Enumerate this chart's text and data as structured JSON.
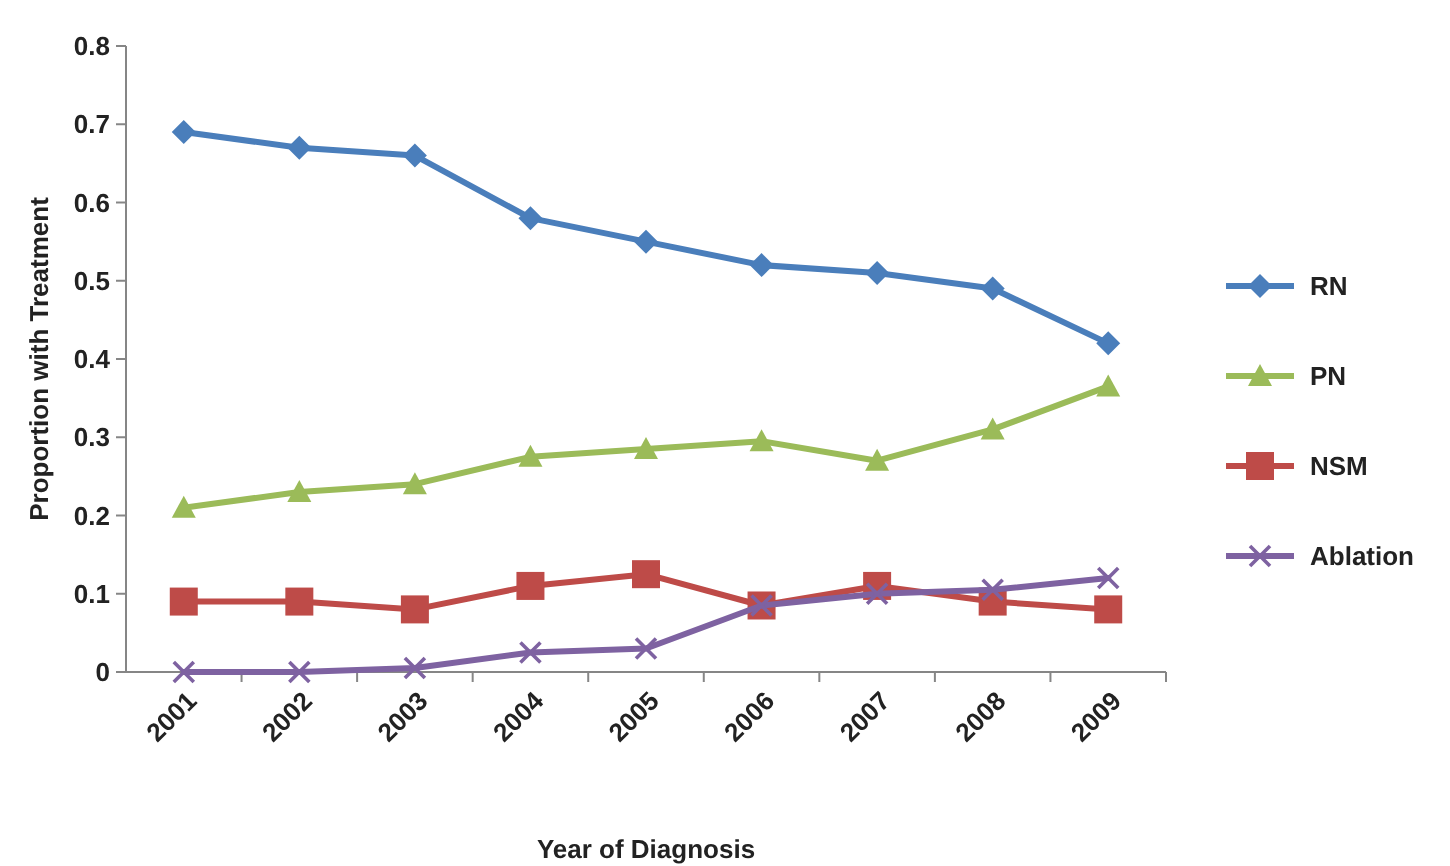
{
  "chart_data": {
    "type": "line",
    "xlabel": "Year of Diagnosis",
    "ylabel": "Proportion with Treatment",
    "categories": [
      "2001",
      "2002",
      "2003",
      "2004",
      "2005",
      "2006",
      "2007",
      "2008",
      "2009"
    ],
    "ylim": [
      0,
      0.8
    ],
    "yticks": [
      0,
      0.1,
      0.2,
      0.3,
      0.4,
      0.5,
      0.6,
      0.7,
      0.8
    ],
    "grid": false,
    "legend": "right",
    "series": [
      {
        "name": "RN",
        "color": "#4a7ebb",
        "marker": "diamond",
        "values": [
          0.69,
          0.67,
          0.66,
          0.58,
          0.55,
          0.52,
          0.51,
          0.49,
          0.42
        ]
      },
      {
        "name": "PN",
        "color": "#9bbb59",
        "marker": "triangle",
        "values": [
          0.21,
          0.23,
          0.24,
          0.275,
          0.285,
          0.295,
          0.27,
          0.31,
          0.365
        ]
      },
      {
        "name": "NSM",
        "color": "#be4b48",
        "marker": "square",
        "values": [
          0.09,
          0.09,
          0.08,
          0.11,
          0.125,
          0.085,
          0.11,
          0.09,
          0.08
        ]
      },
      {
        "name": "Ablation",
        "color": "#7e62a1",
        "marker": "cross",
        "values": [
          0,
          0,
          0.005,
          0.025,
          0.03,
          0.085,
          0.1,
          0.105,
          0.12
        ]
      }
    ]
  }
}
